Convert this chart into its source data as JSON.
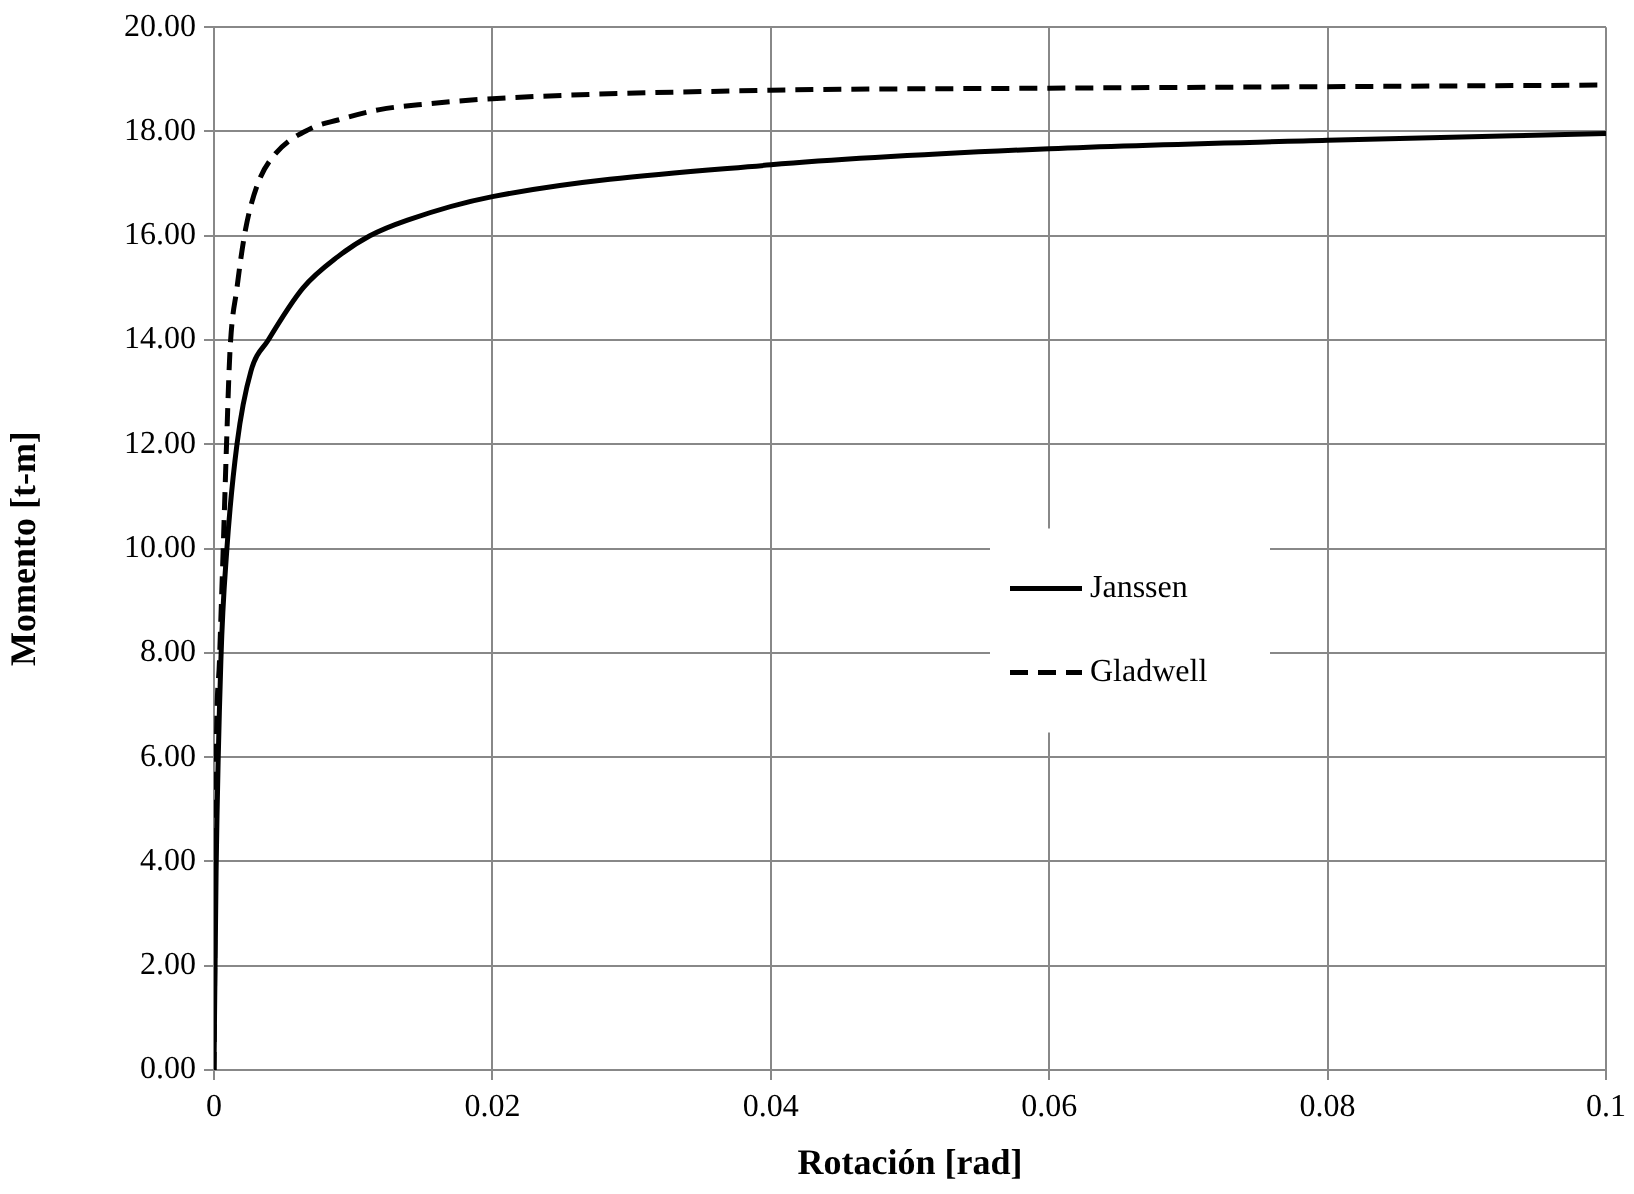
{
  "chart_data": {
    "type": "line",
    "xlabel": "Rotación [rad]",
    "ylabel": "Momento [t-m]",
    "xlim": [
      0,
      0.1
    ],
    "xticks": [
      0,
      0.02,
      0.04,
      0.06,
      0.08,
      0.1
    ],
    "ylim": [
      0,
      20
    ],
    "yticks": [
      {
        "value": 0,
        "label": "0.00"
      },
      {
        "value": 2,
        "label": "2.00"
      },
      {
        "value": 4,
        "label": "4.00"
      },
      {
        "value": 6,
        "label": "6.00"
      },
      {
        "value": 8,
        "label": "8.00"
      },
      {
        "value": 10,
        "label": "10.00"
      },
      {
        "value": 12,
        "label": "12.00"
      },
      {
        "value": 14,
        "label": "14.00"
      },
      {
        "value": 16,
        "label": "16.00"
      },
      {
        "value": 18,
        "label": "18.00"
      },
      {
        "value": 20,
        "label": "20.00"
      }
    ],
    "grid": true,
    "legend": "center",
    "marker": "none",
    "series": [
      {
        "name": "Janssen",
        "color": "#000000",
        "line_style": "solid",
        "x": [
          0,
          0.00015,
          0.0005,
          0.0009,
          0.00165,
          0.00265,
          0.0039,
          0.0064,
          0.0089,
          0.0112,
          0.0139,
          0.02,
          0.04,
          0.06,
          0.08,
          0.1
        ],
        "values": [
          0,
          3.8,
          7.9,
          9.9,
          12,
          13.4,
          14,
          15,
          15.6,
          16,
          16.3,
          16.75,
          17.36,
          17.67,
          17.83,
          17.96
        ]
      },
      {
        "name": "Gladwell",
        "color": "#000000",
        "line_style": "dashed",
        "x": [
          0,
          0.00015,
          0.0004,
          0.00065,
          0.0009,
          0.00115,
          0.00165,
          0.00225,
          0.00315,
          0.0044,
          0.0069,
          0.0089,
          0.0119,
          0.0154,
          0.02,
          0.04,
          0.06,
          0.08,
          0.1
        ],
        "values": [
          0,
          5.8,
          7.9,
          9.9,
          12,
          13.8,
          15,
          16.1,
          17,
          17.57,
          18.05,
          18.22,
          18.42,
          18.53,
          18.63,
          18.79,
          18.83,
          18.86,
          18.89
        ]
      }
    ]
  }
}
